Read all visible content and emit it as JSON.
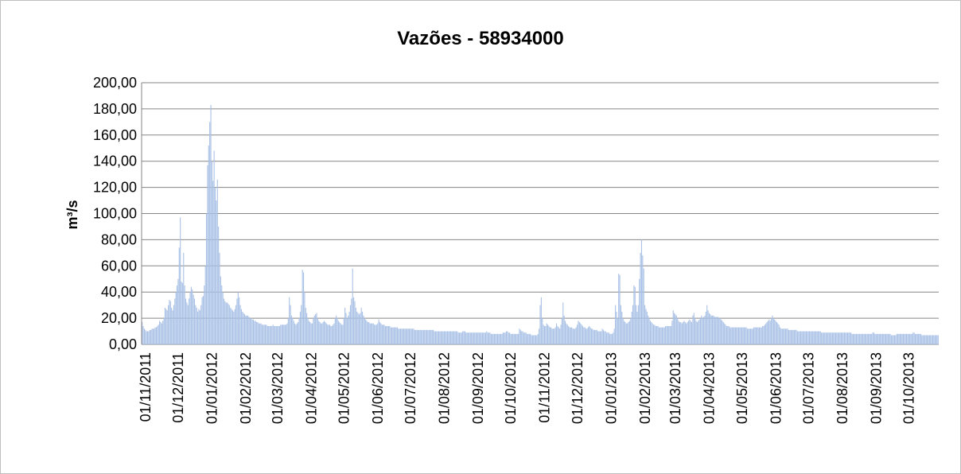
{
  "chart_data": {
    "type": "bar",
    "title": "Vazões - 58934000",
    "y_label": "m³/s",
    "color": "#a9c1e6",
    "grid": true,
    "ylim": [
      0,
      200
    ],
    "yticks": [
      {
        "value": 0,
        "label": "0,00"
      },
      {
        "value": 20,
        "label": "20,00"
      },
      {
        "value": 40,
        "label": "40,00"
      },
      {
        "value": 60,
        "label": "60,00"
      },
      {
        "value": 80,
        "label": "80,00"
      },
      {
        "value": 100,
        "label": "100,00"
      },
      {
        "value": 120,
        "label": "120,00"
      },
      {
        "value": 140,
        "label": "140,00"
      },
      {
        "value": 160,
        "label": "160,00"
      },
      {
        "value": 180,
        "label": "180,00"
      },
      {
        "value": 200,
        "label": "200,00"
      }
    ],
    "categories": [
      "01/11/2011",
      null,
      null,
      null,
      null,
      null,
      null,
      null,
      null,
      null,
      null,
      null,
      null,
      null,
      null,
      null,
      null,
      null,
      null,
      null,
      null,
      null,
      null,
      null,
      null,
      null,
      null,
      null,
      null,
      null,
      "01/12/2011",
      null,
      null,
      null,
      null,
      null,
      null,
      null,
      null,
      null,
      null,
      null,
      null,
      null,
      null,
      null,
      null,
      null,
      null,
      null,
      null,
      null,
      null,
      null,
      null,
      null,
      null,
      null,
      null,
      null,
      null,
      "01/01/2012",
      null,
      null,
      null,
      null,
      null,
      null,
      null,
      null,
      null,
      null,
      null,
      null,
      null,
      null,
      null,
      null,
      null,
      null,
      null,
      null,
      null,
      null,
      null,
      null,
      null,
      null,
      null,
      null,
      null,
      null,
      "01/02/2012",
      null,
      null,
      null,
      null,
      null,
      null,
      null,
      null,
      null,
      null,
      null,
      null,
      null,
      null,
      null,
      null,
      null,
      null,
      null,
      null,
      null,
      null,
      null,
      null,
      null,
      null,
      null,
      null,
      "01/03/2012",
      null,
      null,
      null,
      null,
      null,
      null,
      null,
      null,
      null,
      null,
      null,
      null,
      null,
      null,
      null,
      null,
      null,
      null,
      null,
      null,
      null,
      null,
      null,
      null,
      null,
      null,
      null,
      null,
      null,
      null,
      "01/04/2012",
      null,
      null,
      null,
      null,
      null,
      null,
      null,
      null,
      null,
      null,
      null,
      null,
      null,
      null,
      null,
      null,
      null,
      null,
      null,
      null,
      null,
      null,
      null,
      null,
      null,
      null,
      null,
      null,
      null,
      "01/05/2012",
      null,
      null,
      null,
      null,
      null,
      null,
      null,
      null,
      null,
      null,
      null,
      null,
      null,
      null,
      null,
      null,
      null,
      null,
      null,
      null,
      null,
      null,
      null,
      null,
      null,
      null,
      null,
      null,
      null,
      null,
      "01/06/2012",
      null,
      null,
      null,
      null,
      null,
      null,
      null,
      null,
      null,
      null,
      null,
      null,
      null,
      null,
      null,
      null,
      null,
      null,
      null,
      null,
      null,
      null,
      null,
      null,
      null,
      null,
      null,
      null,
      null,
      "01/07/2012",
      null,
      null,
      null,
      null,
      null,
      null,
      null,
      null,
      null,
      null,
      null,
      null,
      null,
      null,
      null,
      null,
      null,
      null,
      null,
      null,
      null,
      null,
      null,
      null,
      null,
      null,
      null,
      null,
      null,
      null,
      "01/08/2012",
      null,
      null,
      null,
      null,
      null,
      null,
      null,
      null,
      null,
      null,
      null,
      null,
      null,
      null,
      null,
      null,
      null,
      null,
      null,
      null,
      null,
      null,
      null,
      null,
      null,
      null,
      null,
      null,
      null,
      null,
      "01/09/2012",
      null,
      null,
      null,
      null,
      null,
      null,
      null,
      null,
      null,
      null,
      null,
      null,
      null,
      null,
      null,
      null,
      null,
      null,
      null,
      null,
      null,
      null,
      null,
      null,
      null,
      null,
      null,
      null,
      null,
      "01/10/2012",
      null,
      null,
      null,
      null,
      null,
      null,
      null,
      null,
      null,
      null,
      null,
      null,
      null,
      null,
      null,
      null,
      null,
      null,
      null,
      null,
      null,
      null,
      null,
      null,
      null,
      null,
      null,
      null,
      null,
      null,
      "01/11/2012",
      null,
      null,
      null,
      null,
      null,
      null,
      null,
      null,
      null,
      null,
      null,
      null,
      null,
      null,
      null,
      null,
      null,
      null,
      null,
      null,
      null,
      null,
      null,
      null,
      null,
      null,
      null,
      null,
      null,
      "01/12/2012",
      null,
      null,
      null,
      null,
      null,
      null,
      null,
      null,
      null,
      null,
      null,
      null,
      null,
      null,
      null,
      null,
      null,
      null,
      null,
      null,
      null,
      null,
      null,
      null,
      null,
      null,
      null,
      null,
      null,
      null,
      "01/01/2013",
      null,
      null,
      null,
      null,
      null,
      null,
      null,
      null,
      null,
      null,
      null,
      null,
      null,
      null,
      null,
      null,
      null,
      null,
      null,
      null,
      null,
      null,
      null,
      null,
      null,
      null,
      null,
      null,
      null,
      null,
      "01/02/2013",
      null,
      null,
      null,
      null,
      null,
      null,
      null,
      null,
      null,
      null,
      null,
      null,
      null,
      null,
      null,
      null,
      null,
      null,
      null,
      null,
      null,
      null,
      null,
      null,
      null,
      null,
      null,
      "01/03/2013",
      null,
      null,
      null,
      null,
      null,
      null,
      null,
      null,
      null,
      null,
      null,
      null,
      null,
      null,
      null,
      null,
      null,
      null,
      null,
      null,
      null,
      null,
      null,
      null,
      null,
      null,
      null,
      null,
      null,
      null,
      "01/04/2013",
      null,
      null,
      null,
      null,
      null,
      null,
      null,
      null,
      null,
      null,
      null,
      null,
      null,
      null,
      null,
      null,
      null,
      null,
      null,
      null,
      null,
      null,
      null,
      null,
      null,
      null,
      null,
      null,
      null,
      "01/05/2013",
      null,
      null,
      null,
      null,
      null,
      null,
      null,
      null,
      null,
      null,
      null,
      null,
      null,
      null,
      null,
      null,
      null,
      null,
      null,
      null,
      null,
      null,
      null,
      null,
      null,
      null,
      null,
      null,
      null,
      null,
      "01/06/2013",
      null,
      null,
      null,
      null,
      null,
      null,
      null,
      null,
      null,
      null,
      null,
      null,
      null,
      null,
      null,
      null,
      null,
      null,
      null,
      null,
      null,
      null,
      null,
      null,
      null,
      null,
      null,
      null,
      null,
      "01/07/2013",
      null,
      null,
      null,
      null,
      null,
      null,
      null,
      null,
      null,
      null,
      null,
      null,
      null,
      null,
      null,
      null,
      null,
      null,
      null,
      null,
      null,
      null,
      null,
      null,
      null,
      null,
      null,
      null,
      null,
      null,
      "01/08/2013",
      null,
      null,
      null,
      null,
      null,
      null,
      null,
      null,
      null,
      null,
      null,
      null,
      null,
      null,
      null,
      null,
      null,
      null,
      null,
      null,
      null,
      null,
      null,
      null,
      null,
      null,
      null,
      null,
      null,
      null,
      "01/09/2013",
      null,
      null,
      null,
      null,
      null,
      null,
      null,
      null,
      null,
      null,
      null,
      null,
      null,
      null,
      null,
      null,
      null,
      null,
      null,
      null,
      null,
      null,
      null,
      null,
      null,
      null,
      null,
      null,
      null,
      "01/10/2013",
      null,
      null,
      null,
      null,
      null,
      null,
      null,
      null,
      null,
      null,
      null,
      null,
      null,
      null,
      null,
      null,
      null,
      null,
      null,
      null,
      null,
      null,
      null,
      null,
      null,
      null,
      null,
      null,
      null,
      null
    ],
    "values": [
      17,
      14,
      12,
      11,
      10,
      10,
      10,
      11,
      11,
      12,
      12,
      12,
      13,
      13,
      14,
      15,
      18,
      17,
      16,
      18,
      20,
      28,
      27,
      26,
      30,
      34,
      33,
      28,
      26,
      30,
      35,
      40,
      45,
      50,
      74,
      97,
      48,
      47,
      70,
      45,
      35,
      32,
      30,
      35,
      40,
      44,
      42,
      38,
      35,
      30,
      28,
      25,
      27,
      26,
      30,
      36,
      37,
      45,
      60,
      100,
      137,
      152,
      170,
      183,
      140,
      125,
      148,
      120,
      110,
      126,
      90,
      70,
      52,
      45,
      40,
      35,
      33,
      32,
      32,
      31,
      30,
      28,
      27,
      26,
      25,
      27,
      30,
      35,
      40,
      36,
      30,
      27,
      25,
      24,
      23,
      22,
      22,
      22,
      21,
      20,
      20,
      19,
      19,
      18,
      18,
      17,
      17,
      16,
      16,
      16,
      15,
      15,
      15,
      15,
      15,
      14,
      14,
      14,
      14,
      14,
      15,
      14,
      14,
      14,
      14,
      14,
      14,
      15,
      15,
      15,
      15,
      15,
      15,
      16,
      20,
      36,
      30,
      22,
      20,
      18,
      16,
      15,
      16,
      17,
      20,
      25,
      30,
      57,
      55,
      40,
      28,
      24,
      20,
      18,
      17,
      16,
      16,
      20,
      22,
      23,
      24,
      20,
      18,
      17,
      16,
      16,
      17,
      18,
      17,
      16,
      15,
      15,
      15,
      14,
      14,
      15,
      16,
      20,
      22,
      20,
      18,
      17,
      16,
      15,
      15,
      20,
      28,
      24,
      20,
      22,
      25,
      30,
      35,
      58,
      36,
      33,
      28,
      25,
      24,
      23,
      24,
      28,
      25,
      22,
      20,
      19,
      18,
      17,
      17,
      16,
      16,
      16,
      16,
      15,
      15,
      15,
      16,
      19,
      17,
      16,
      15,
      15,
      15,
      14,
      14,
      14,
      14,
      14,
      13,
      13,
      13,
      13,
      13,
      13,
      13,
      12,
      12,
      12,
      12,
      12,
      12,
      12,
      12,
      12,
      12,
      12,
      12,
      12,
      12,
      12,
      11,
      11,
      11,
      11,
      11,
      11,
      11,
      11,
      11,
      11,
      11,
      11,
      11,
      11,
      11,
      11,
      11,
      11,
      10,
      10,
      10,
      10,
      10,
      10,
      10,
      10,
      10,
      10,
      10,
      10,
      10,
      10,
      10,
      10,
      10,
      10,
      10,
      10,
      10,
      10,
      9,
      9,
      9,
      9,
      10,
      10,
      10,
      9,
      9,
      9,
      9,
      9,
      9,
      9,
      9,
      9,
      9,
      9,
      9,
      9,
      9,
      9,
      9,
      9,
      9,
      9,
      10,
      9,
      9,
      9,
      8,
      8,
      8,
      8,
      8,
      8,
      8,
      8,
      8,
      8,
      8,
      9,
      9,
      9,
      10,
      10,
      9,
      9,
      8,
      8,
      8,
      8,
      8,
      8,
      8,
      8,
      12,
      11,
      10,
      10,
      9,
      9,
      9,
      8,
      8,
      8,
      8,
      7,
      7,
      7,
      7,
      7,
      7,
      8,
      12,
      30,
      36,
      20,
      15,
      14,
      14,
      16,
      15,
      14,
      13,
      13,
      12,
      12,
      12,
      13,
      16,
      14,
      13,
      12,
      15,
      20,
      32,
      22,
      18,
      16,
      15,
      14,
      13,
      13,
      13,
      12,
      12,
      12,
      13,
      15,
      18,
      17,
      16,
      15,
      14,
      13,
      13,
      12,
      12,
      13,
      14,
      13,
      12,
      12,
      11,
      11,
      11,
      11,
      10,
      10,
      10,
      10,
      12,
      11,
      10,
      10,
      9,
      9,
      9,
      8,
      8,
      8,
      9,
      12,
      30,
      25,
      20,
      54,
      53,
      30,
      25,
      20,
      18,
      17,
      16,
      16,
      17,
      18,
      20,
      25,
      30,
      45,
      44,
      30,
      25,
      30,
      50,
      70,
      80,
      68,
      58,
      30,
      27,
      25,
      22,
      20,
      18,
      17,
      16,
      15,
      15,
      14,
      14,
      14,
      13,
      13,
      13,
      13,
      13,
      13,
      14,
      14,
      14,
      14,
      14,
      14,
      18,
      26,
      24,
      23,
      22,
      20,
      18,
      17,
      17,
      16,
      17,
      18,
      17,
      16,
      17,
      18,
      19,
      18,
      17,
      22,
      24,
      20,
      18,
      17,
      18,
      19,
      20,
      22,
      20,
      21,
      22,
      25,
      30,
      26,
      24,
      23,
      22,
      22,
      22,
      21,
      21,
      21,
      21,
      20,
      20,
      19,
      18,
      17,
      16,
      15,
      14,
      14,
      14,
      13,
      13,
      13,
      13,
      13,
      13,
      13,
      13,
      13,
      13,
      13,
      13,
      13,
      13,
      13,
      13,
      12,
      12,
      12,
      12,
      12,
      12,
      13,
      13,
      13,
      13,
      13,
      13,
      13,
      13,
      14,
      14,
      15,
      16,
      17,
      18,
      19,
      18,
      20,
      22,
      20,
      19,
      18,
      17,
      16,
      15,
      13,
      12,
      12,
      12,
      12,
      12,
      12,
      12,
      11,
      11,
      11,
      11,
      11,
      11,
      11,
      11,
      10,
      10,
      10,
      10,
      10,
      10,
      10,
      10,
      10,
      10,
      10,
      10,
      10,
      10,
      10,
      10,
      10,
      10,
      10,
      10,
      10,
      10,
      9,
      9,
      9,
      9,
      9,
      9,
      9,
      9,
      9,
      9,
      9,
      9,
      9,
      9,
      9,
      9,
      9,
      9,
      9,
      9,
      9,
      9,
      9,
      9,
      9,
      9,
      9,
      9,
      8,
      8,
      8,
      8,
      8,
      8,
      8,
      8,
      8,
      8,
      8,
      8,
      8,
      8,
      8,
      8,
      8,
      8,
      8,
      9,
      9,
      8,
      8,
      8,
      8,
      8,
      8,
      8,
      8,
      8,
      8,
      8,
      8,
      8,
      8,
      8,
      7,
      7,
      7,
      7,
      7,
      8,
      8,
      8,
      8,
      8,
      8,
      8,
      8,
      8,
      8,
      8,
      8,
      8,
      8,
      8,
      9,
      9,
      8,
      8,
      8,
      8,
      8,
      8,
      7,
      7,
      7,
      7,
      7,
      7,
      7,
      7,
      7,
      7,
      7,
      7,
      7,
      7,
      7,
      7
    ]
  }
}
